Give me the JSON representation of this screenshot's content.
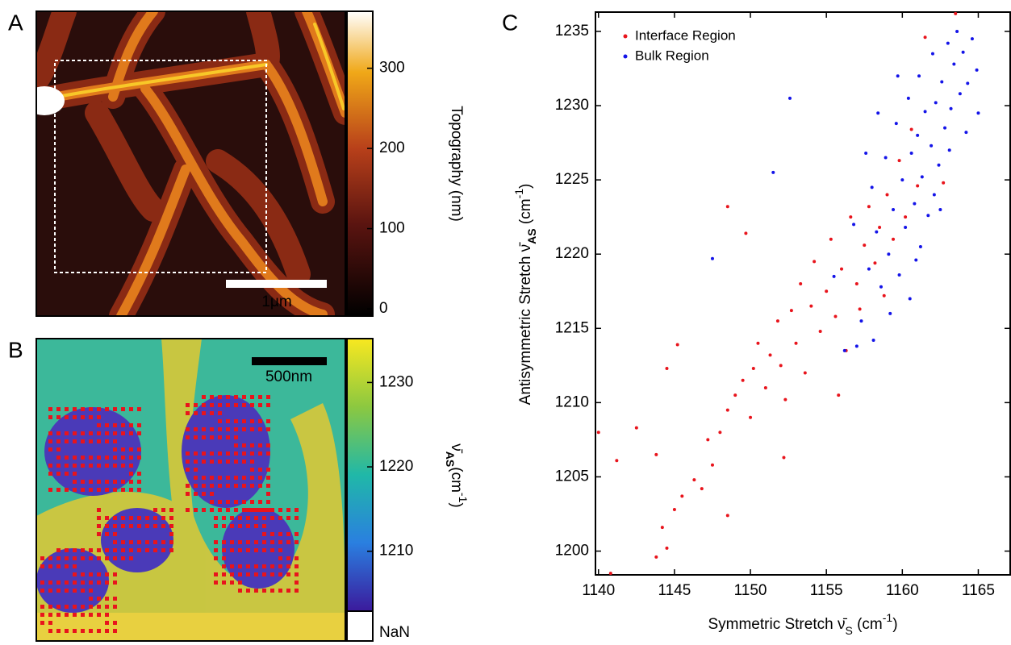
{
  "chart_data": [
    {
      "type": "heatmap",
      "panel_label": "A",
      "colorbar_label": "Topography (nm)",
      "clim": [
        -9,
        371
      ],
      "cticks": [
        0,
        100,
        200,
        300
      ],
      "scale_bar": "1μm"
    },
    {
      "type": "heatmap",
      "panel_label": "B",
      "colorbar_label": {
        "symbol": "ν̄",
        "sub": "AS",
        "unit": "(cm",
        "sup": "-1",
        "end": ")"
      },
      "clim": [
        1202.9,
        1235.2
      ],
      "cticks": [
        1210,
        1220,
        1230
      ],
      "nan_label": "NaN",
      "scale_bar": "500nm"
    },
    {
      "type": "scatter",
      "panel_label": "C",
      "xlabel": {
        "text": "Symmetric Stretch ν̄",
        "sub": "S",
        "unit": " (cm",
        "sup": "-1",
        "end": ")"
      },
      "ylabel": {
        "text": "Antisymmetric Stretch ν̄",
        "sub": "AS",
        "unit": " (cm",
        "sup": "-1",
        "end": ")"
      },
      "xlim": [
        1139.8,
        1167.1
      ],
      "ylim": [
        1198.4,
        1236.3
      ],
      "xticks": [
        1140,
        1145,
        1150,
        1155,
        1160,
        1165
      ],
      "yticks": [
        1200,
        1205,
        1210,
        1215,
        1220,
        1225,
        1230,
        1235
      ],
      "legend": "upper left",
      "series": [
        {
          "name": "Interface Region",
          "color": "#e8141c",
          "x": [
            1143.8,
            1144.2,
            1144.5,
            1145,
            1145.5,
            1146.3,
            1146.8,
            1147.5,
            1147.2,
            1148.5,
            1148,
            1148.5,
            1149,
            1149.5,
            1150,
            1150.2,
            1150.5,
            1151,
            1151.3,
            1151.8,
            1152,
            1152.3,
            1152.7,
            1153,
            1153.3,
            1153.6,
            1154,
            1154.2,
            1154.6,
            1155,
            1155.3,
            1155.6,
            1156,
            1156.3,
            1156.6,
            1157,
            1157.2,
            1157.5,
            1157.8,
            1158.2,
            1158.5,
            1158.8,
            1159,
            1159.4,
            1159.8,
            1160.2,
            1160.6,
            1161,
            1161.5,
            1163.5,
            1140,
            1140.8,
            1141.2,
            1142.5,
            1143.8,
            1144.5,
            1145.2,
            1148.5,
            1149.7,
            1152.2,
            1155.8,
            1162.7
          ],
          "values": [
            1199.6,
            1201.6,
            1200.2,
            1202.8,
            1203.7,
            1204.8,
            1204.2,
            1205.8,
            1207.5,
            1202.4,
            1208,
            1209.5,
            1210.5,
            1211.5,
            1209,
            1212.3,
            1214,
            1211,
            1213.2,
            1215.5,
            1212.5,
            1210.2,
            1216.2,
            1214,
            1218,
            1212,
            1216.5,
            1219.5,
            1214.8,
            1217.5,
            1221,
            1215.8,
            1219,
            1213.5,
            1222.5,
            1218,
            1216.3,
            1220.6,
            1223.2,
            1219.4,
            1221.8,
            1217.2,
            1224,
            1221,
            1226.3,
            1222.5,
            1228.4,
            1224.6,
            1234.6,
            1236.2,
            1208,
            1198.5,
            1206.1,
            1208.3,
            1206.5,
            1212.3,
            1213.9,
            1223.2,
            1221.4,
            1206.3,
            1210.5,
            1224.8
          ]
        },
        {
          "name": "Bulk Region",
          "color": "#1414e8",
          "x": [
            1147.5,
            1151.5,
            1152.6,
            1155.5,
            1156.2,
            1156.8,
            1157.3,
            1157.8,
            1158,
            1158.3,
            1158.6,
            1158.9,
            1159.1,
            1159.4,
            1159.6,
            1159.8,
            1160,
            1160.2,
            1160.4,
            1160.6,
            1160.8,
            1161,
            1161.1,
            1161.3,
            1161.5,
            1161.7,
            1161.9,
            1162,
            1162.2,
            1162.4,
            1162.6,
            1162.8,
            1163,
            1163.2,
            1163.4,
            1163.6,
            1163.8,
            1164,
            1164.3,
            1164.6,
            1164.9,
            1165,
            1162.1,
            1161.2,
            1160.5,
            1159.2,
            1158.1,
            1157,
            1160.9,
            1162.5,
            1163.1,
            1164.2,
            1159.7,
            1158.4,
            1157.6
          ],
          "values": [
            1219.7,
            1225.5,
            1230.5,
            1218.5,
            1213.5,
            1222,
            1215.5,
            1219,
            1224.5,
            1221.5,
            1217.8,
            1226.5,
            1220,
            1223,
            1228.8,
            1218.6,
            1225,
            1221.8,
            1230.5,
            1226.8,
            1223.4,
            1228,
            1232,
            1225.2,
            1229.6,
            1222.6,
            1227.3,
            1233.5,
            1230.2,
            1226,
            1231.6,
            1228.5,
            1234.2,
            1229.8,
            1232.8,
            1235,
            1230.8,
            1233.6,
            1231.5,
            1234.5,
            1232.4,
            1229.5,
            1224,
            1220.5,
            1217,
            1216,
            1214.2,
            1213.8,
            1219.6,
            1223,
            1227,
            1228.2,
            1232,
            1229.5,
            1226.8
          ]
        }
      ]
    }
  ]
}
